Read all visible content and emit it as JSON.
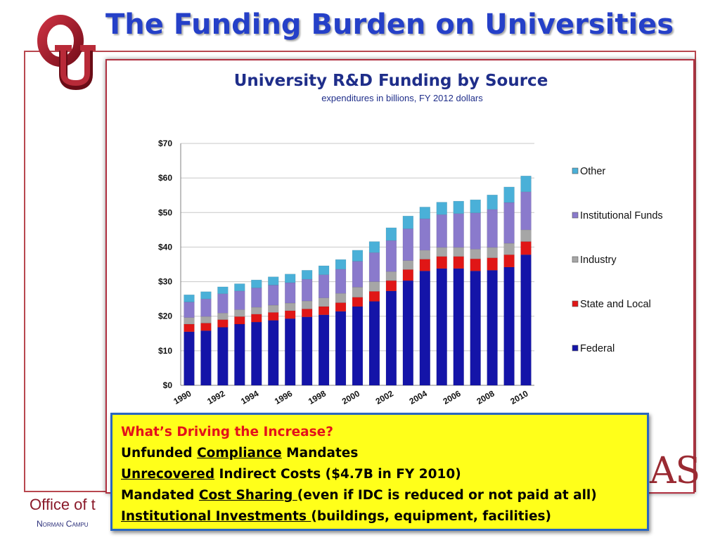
{
  "slide": {
    "title": "The Funding Burden on Universities",
    "brand_fragment": "AS",
    "footer_office": "Office of t",
    "footer_campus": "Norman Campu"
  },
  "callout": {
    "heading": "What’s Driving the Increase?",
    "line1_a": "Unfunded ",
    "line1_b": "Compliance",
    "line1_c": " Mandates",
    "line2_a": "Unrecovered",
    "line2_b": " Indirect Costs ($4.7B in FY 2010)",
    "line3_a": "Mandated ",
    "line3_b": "Cost Sharing ",
    "line3_c": "(even if IDC is reduced or not paid at all)",
    "line4_a": "Institutional Investments ",
    "line4_b": "(buildings, equipment, facilities)"
  },
  "colors": {
    "Federal": "#1414a8",
    "State and Local": "#e01616",
    "Industry": "#a6a6a6",
    "Institutional Funds": "#8a7acc",
    "Other": "#4ab0d8"
  },
  "chart_data": {
    "type": "bar",
    "stacked": true,
    "title": "University R&D Funding by Source",
    "subtitle": "expenditures in billions, FY 2012 dollars",
    "categories": [
      "1990",
      "1991",
      "1992",
      "1993",
      "1994",
      "1995",
      "1996",
      "1997",
      "1998",
      "1999",
      "2000",
      "2001",
      "2002",
      "2003",
      "2004",
      "2005",
      "2006",
      "2007",
      "2008",
      "2009",
      "2010"
    ],
    "x_tick_labels": [
      "1990",
      "1992",
      "1994",
      "1996",
      "1998",
      "2000",
      "2002",
      "2004",
      "2006",
      "2008",
      "2010"
    ],
    "y_tick_labels": [
      "$0",
      "$10",
      "$20",
      "$30",
      "$40",
      "$50",
      "$60",
      "$70"
    ],
    "ylim": [
      0,
      70
    ],
    "grid": true,
    "legend_position": "right",
    "series": [
      {
        "name": "Federal",
        "values": [
          15.5,
          15.8,
          16.8,
          17.7,
          18.3,
          18.8,
          19.3,
          19.8,
          20.4,
          21.4,
          22.8,
          24.3,
          27.3,
          30.3,
          33.1,
          33.8,
          33.8,
          33.1,
          33.3,
          34.2,
          37.8
        ]
      },
      {
        "name": "State and Local",
        "values": [
          2.2,
          2.2,
          2.2,
          2.2,
          2.3,
          2.3,
          2.3,
          2.3,
          2.4,
          2.5,
          2.7,
          2.9,
          3.0,
          3.2,
          3.4,
          3.5,
          3.5,
          3.5,
          3.6,
          3.6,
          3.8
        ]
      },
      {
        "name": "Industry",
        "values": [
          1.9,
          1.9,
          1.9,
          2.0,
          2.0,
          2.1,
          2.2,
          2.3,
          2.5,
          2.7,
          2.9,
          2.8,
          2.6,
          2.6,
          2.6,
          2.6,
          2.6,
          2.8,
          3.0,
          3.3,
          3.4
        ]
      },
      {
        "name": "Institutional Funds",
        "values": [
          4.5,
          5.1,
          5.6,
          5.4,
          5.6,
          5.8,
          5.9,
          6.3,
          6.7,
          7.0,
          7.5,
          8.4,
          9.0,
          9.2,
          9.1,
          9.5,
          9.8,
          10.5,
          11.0,
          11.8,
          11.0
        ]
      },
      {
        "name": "Other",
        "values": [
          2.1,
          2.1,
          2.0,
          2.1,
          2.3,
          2.4,
          2.5,
          2.6,
          2.6,
          2.8,
          3.2,
          3.2,
          3.7,
          3.7,
          3.4,
          3.6,
          3.6,
          3.8,
          4.2,
          4.5,
          4.6
        ]
      }
    ],
    "legend_order": [
      "Other",
      "Institutional Funds",
      "Industry",
      "State and Local",
      "Federal"
    ]
  }
}
